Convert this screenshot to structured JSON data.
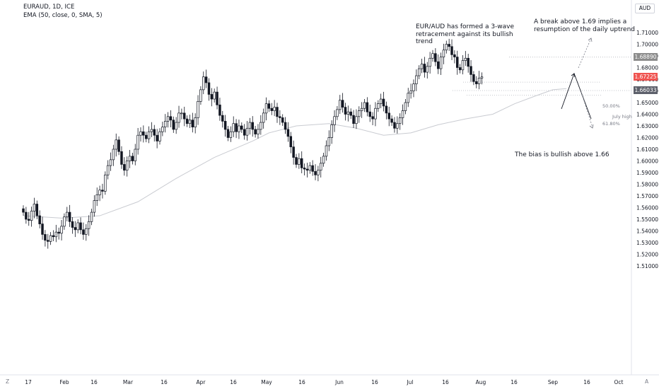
{
  "header": {
    "symbol_line": "EURAUD, 1D, ICE",
    "indicator_line": "EMA (50, close, 0, SMA, 5)"
  },
  "price_axis": {
    "unit_label": "AUD",
    "tick_labels": [
      "1.71000",
      "1.70000",
      "1.69000",
      "1.68000",
      "1.67000",
      "1.66000",
      "1.65000",
      "1.64000",
      "1.63000",
      "1.62000",
      "1.61000",
      "1.60000",
      "1.59000",
      "1.58000",
      "1.57000",
      "1.56000",
      "1.55000",
      "1.54000",
      "1.53000",
      "1.52000",
      "1.51000"
    ],
    "price_tags": [
      {
        "label": "1.68890",
        "value": 1.6889,
        "bg": "#8c8c8c",
        "fg": "#ffffff"
      },
      {
        "label": "1.67225",
        "value": 1.67225,
        "bg": "#ef5350",
        "fg": "#ffffff"
      },
      {
        "label": "1.66033",
        "value": 1.66033,
        "bg": "#5d606b",
        "fg": "#ffffff"
      }
    ]
  },
  "time_axis": {
    "labels": [
      "17",
      "Feb",
      "16",
      "Mar",
      "16",
      "Apr",
      "16",
      "May",
      "16",
      "Jun",
      "16",
      "Jul",
      "16",
      "Aug",
      "16",
      "Sep",
      "16",
      "Oct"
    ]
  },
  "corner_left": "Z",
  "corner_right": "A",
  "annotations": {
    "wave_text": "EUR/AUD has formed a 3-wave\nretracement against its bullish\ntrend",
    "break_text": "A break above 1.69 implies a\nresumption of the daily uptrend",
    "bias_text": "The bias is bullish above 1.66",
    "fib_50": "50.00%",
    "fib_618": "61.80%",
    "july_high": "July high"
  },
  "colors": {
    "up": "#ffffff",
    "down": "#131722",
    "ema": "#b2b5be",
    "grid": "#ffffff"
  },
  "chart_data": {
    "type": "candlestick",
    "title": "EURAUD, 1D, ICE",
    "ylim": [
      1.505,
      1.72
    ],
    "x_labels": [
      "17",
      "Feb",
      "16",
      "Mar",
      "16",
      "Apr",
      "16",
      "May",
      "16",
      "Jun",
      "16",
      "Jul",
      "16",
      "Aug",
      "16",
      "Sep",
      "16",
      "Oct"
    ],
    "series": [
      {
        "name": "EMA (50, close, 0, SMA, 5)",
        "type": "line",
        "points": [
          [
            0,
            1.553
          ],
          [
            14,
            1.551
          ],
          [
            28,
            1.553
          ],
          [
            42,
            1.565
          ],
          [
            56,
            1.585
          ],
          [
            70,
            1.603
          ],
          [
            84,
            1.617
          ],
          [
            90,
            1.624
          ],
          [
            100,
            1.63
          ],
          [
            112,
            1.632
          ],
          [
            122,
            1.628
          ],
          [
            132,
            1.622
          ],
          [
            142,
            1.624
          ],
          [
            152,
            1.631
          ],
          [
            162,
            1.636
          ],
          [
            172,
            1.64
          ],
          [
            180,
            1.649
          ],
          [
            188,
            1.656
          ],
          [
            194,
            1.661
          ],
          [
            199,
            1.662
          ]
        ]
      }
    ],
    "closes": [
      1.556,
      1.55,
      1.549,
      1.557,
      1.563,
      1.553,
      1.546,
      1.537,
      1.532,
      1.531,
      1.536,
      1.535,
      1.539,
      1.538,
      1.544,
      1.552,
      1.556,
      1.548,
      1.543,
      1.541,
      1.547,
      1.541,
      1.537,
      1.542,
      1.548,
      1.556,
      1.566,
      1.571,
      1.575,
      1.574,
      1.588,
      1.596,
      1.601,
      1.61,
      1.618,
      1.608,
      1.597,
      1.592,
      1.6,
      1.604,
      1.6,
      1.61,
      1.622,
      1.625,
      1.622,
      1.619,
      1.625,
      1.627,
      1.622,
      1.617,
      1.625,
      1.629,
      1.634,
      1.638,
      1.635,
      1.627,
      1.633,
      1.641,
      1.641,
      1.636,
      1.632,
      1.635,
      1.629,
      1.637,
      1.651,
      1.661,
      1.672,
      1.667,
      1.657,
      1.653,
      1.659,
      1.648,
      1.639,
      1.634,
      1.627,
      1.62,
      1.625,
      1.632,
      1.625,
      1.63,
      1.627,
      1.622,
      1.628,
      1.633,
      1.627,
      1.623,
      1.627,
      1.633,
      1.641,
      1.649,
      1.645,
      1.643,
      1.646,
      1.638,
      1.637,
      1.633,
      1.627,
      1.621,
      1.612,
      1.603,
      1.597,
      1.602,
      1.594,
      1.593,
      1.592,
      1.596,
      1.591,
      1.588,
      1.592,
      1.598,
      1.604,
      1.613,
      1.62,
      1.631,
      1.638,
      1.644,
      1.652,
      1.646,
      1.64,
      1.642,
      1.639,
      1.632,
      1.638,
      1.643,
      1.645,
      1.65,
      1.642,
      1.638,
      1.636,
      1.645,
      1.649,
      1.653,
      1.647,
      1.641,
      1.636,
      1.633,
      1.628,
      1.632,
      1.637,
      1.643,
      1.65,
      1.658,
      1.66,
      1.666,
      1.673,
      1.679,
      1.683,
      1.676,
      1.681,
      1.688,
      1.692,
      1.685,
      1.679,
      1.689,
      1.695,
      1.7,
      1.698,
      1.691,
      1.689,
      1.68,
      1.678,
      1.686,
      1.688,
      1.681,
      1.674,
      1.668,
      1.666,
      1.671,
      1.672
    ]
  }
}
